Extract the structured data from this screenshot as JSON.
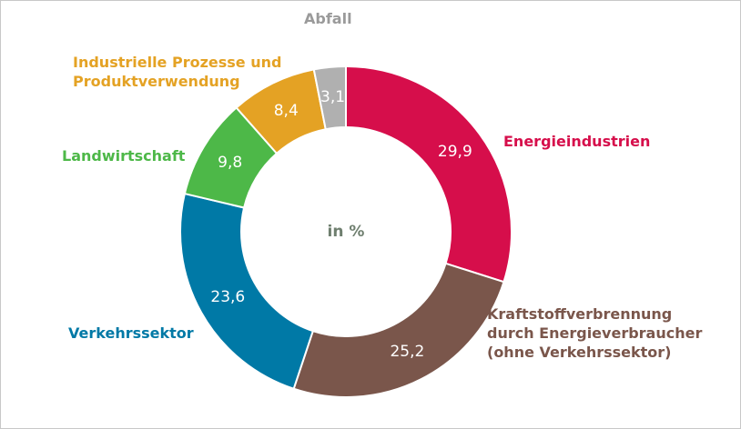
{
  "chart_data": {
    "type": "donut",
    "center_label": "in %",
    "categories": [
      "Energieindustrien",
      "Kraftstoffverbrennung\ndurch Energieverbraucher\n(ohne Verkehrssektor)",
      "Verkehrssektor",
      "Landwirtschaft",
      "Industrielle Prozesse und\nProduktverwendung",
      "Abfall"
    ],
    "values": [
      29.9,
      25.2,
      23.6,
      9.8,
      8.4,
      3.1
    ],
    "value_labels": [
      "29,9",
      "25,2",
      "23,6",
      "9,8",
      "8,4",
      "3,1"
    ],
    "colors": [
      "#d60e4b",
      "#7a564b",
      "#0079a6",
      "#4db848",
      "#e4a224",
      "#b0b0b0"
    ]
  }
}
